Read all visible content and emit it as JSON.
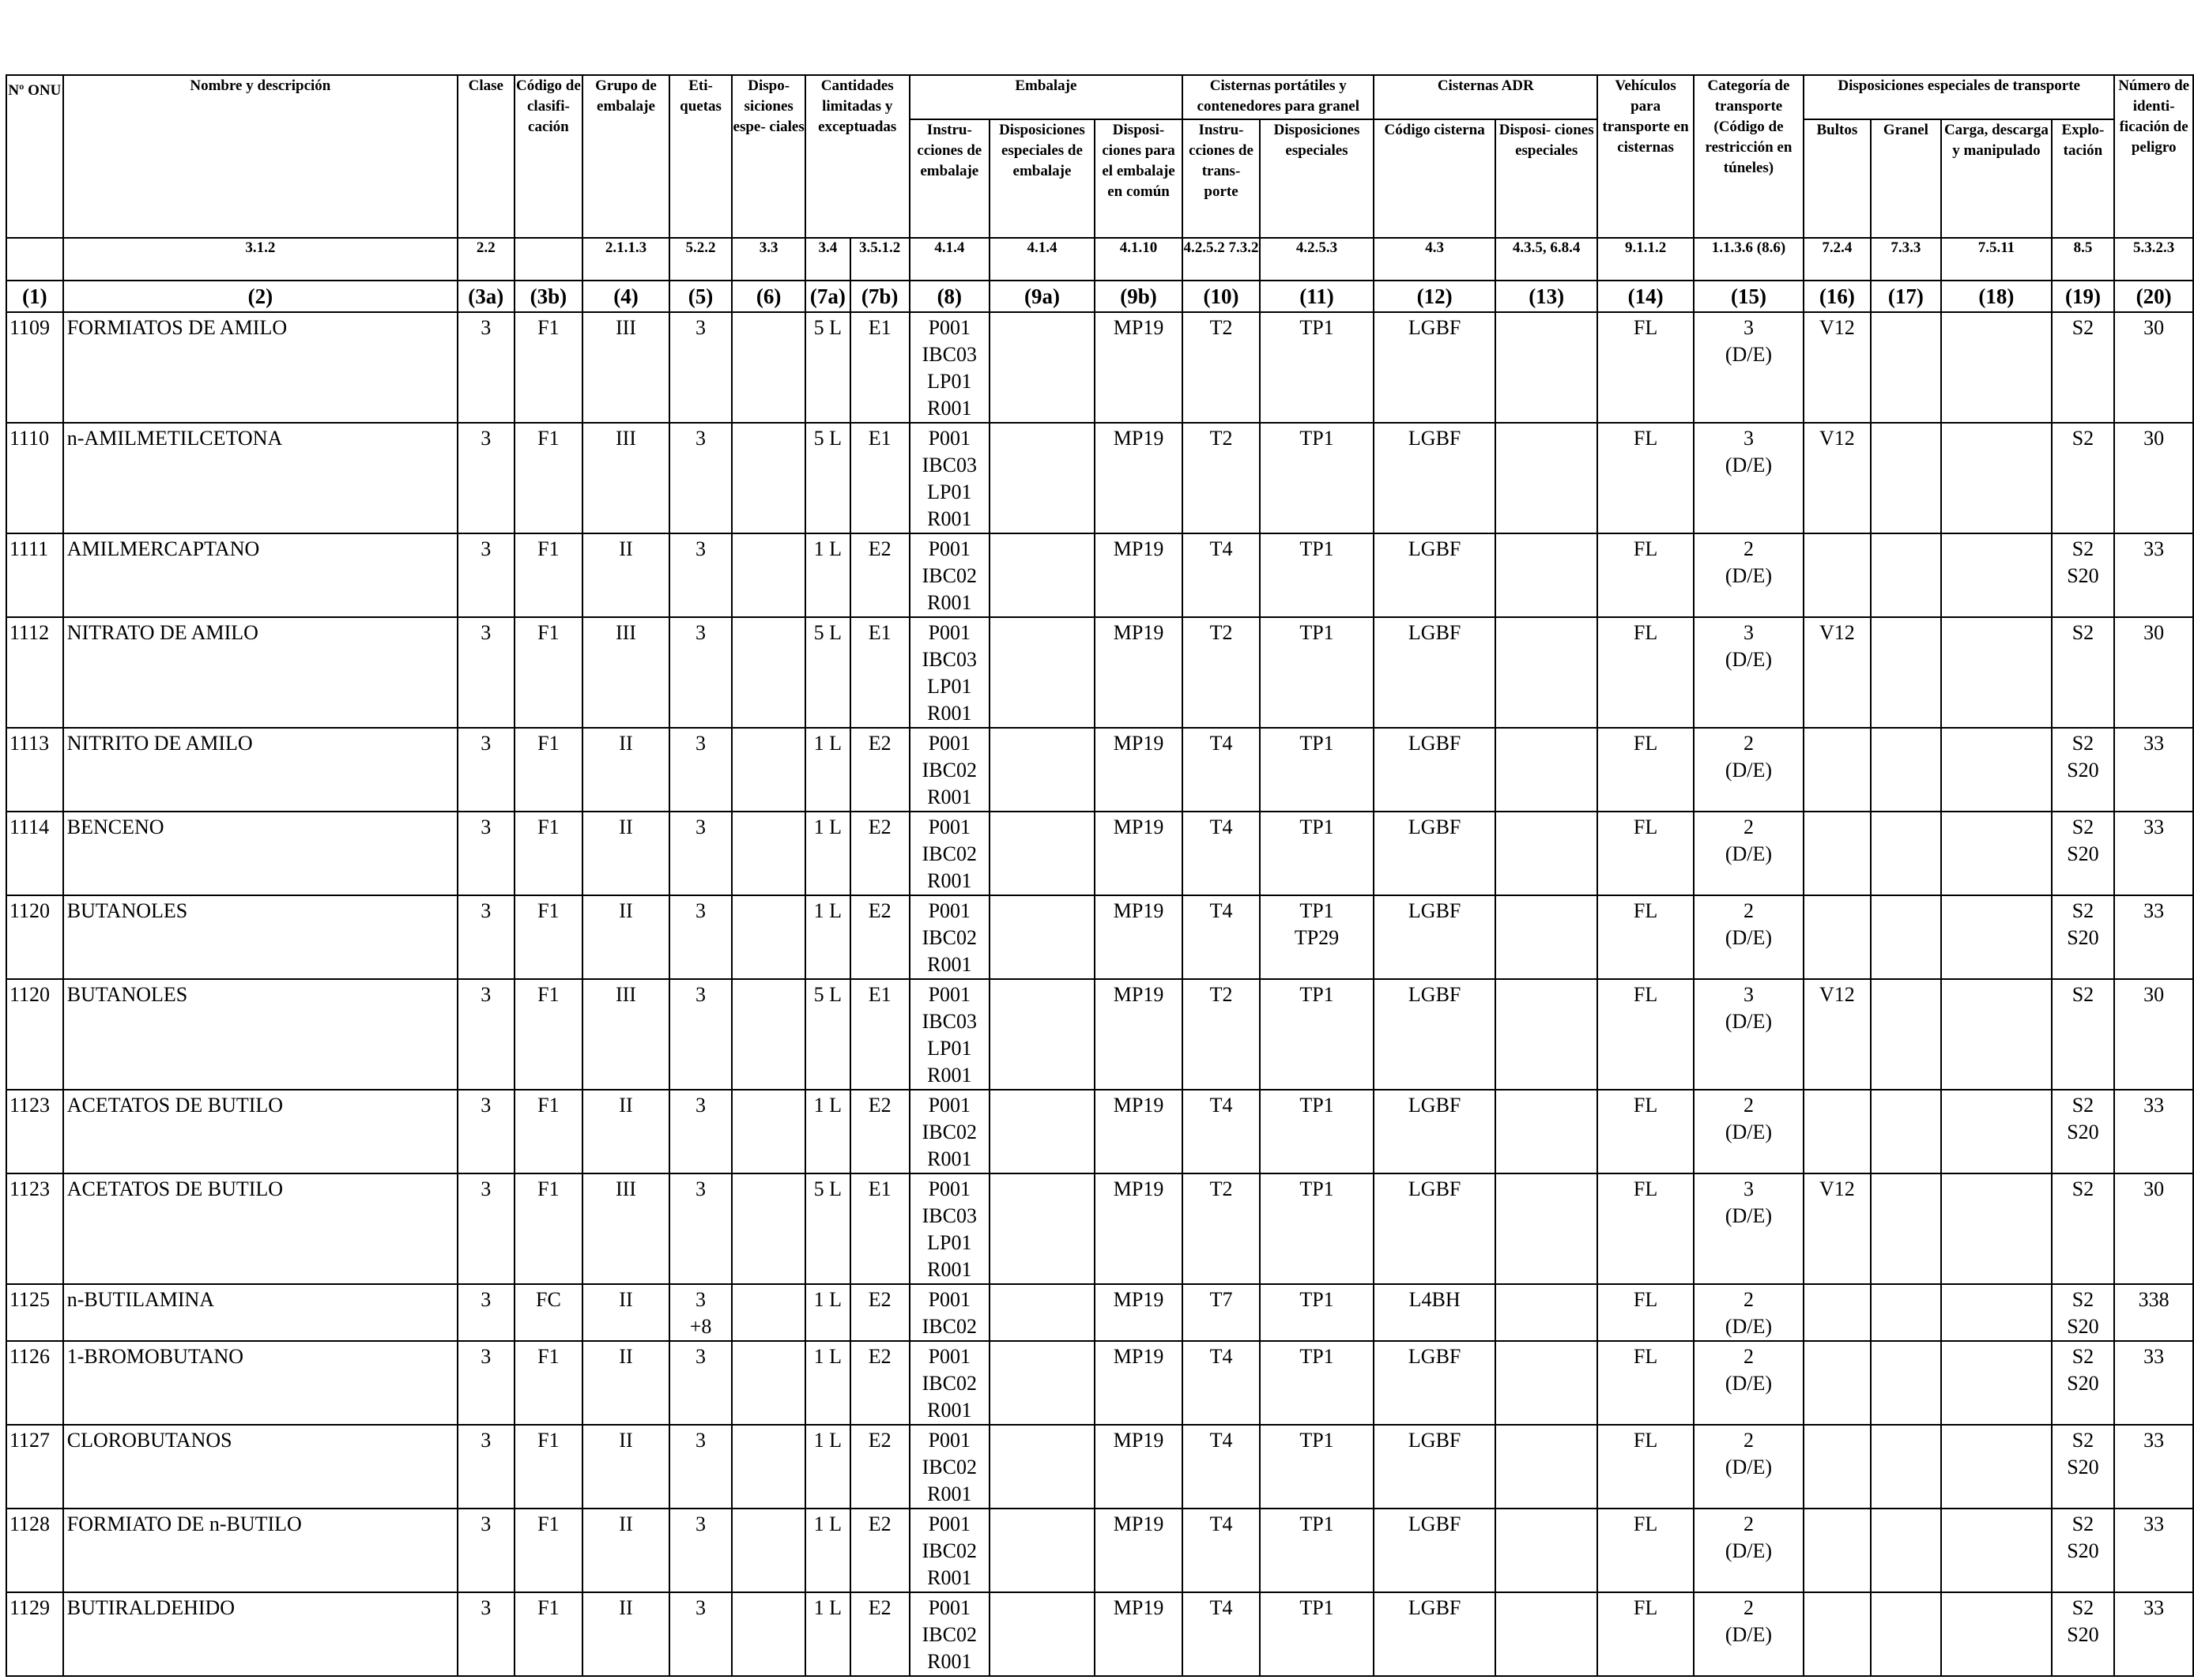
{
  "headers": {
    "onu": "Nº ONU",
    "nombre": "Nombre y descripción",
    "clase": "Clase",
    "codigo": "Código de clasifi- cación",
    "grupo": "Grupo de embalaje",
    "etiquetas": "Eti- quetas",
    "disposiciones": "Dispo- siciones espe- ciales",
    "cantidades": "Cantidades limitadas y exceptuadas",
    "embalaje": "Embalaje",
    "emb_instr": "Instru- cciones de embalaje",
    "emb_disp": "Disposiciones especiales de embalaje",
    "emb_comun": "Disposi- ciones para el embalaje en común",
    "cisternas_port": "Cisternas portátiles y contenedores para granel",
    "cp_instr": "Instru- cciones de trans- porte",
    "cp_disp": "Disposiciones especiales",
    "cisternas_adr": "Cisternas ADR",
    "cadr_codigo": "Código cisterna",
    "cadr_disp": "Disposi- ciones especiales",
    "vehiculos": "Vehículos para transporte en cisternas",
    "categoria": "Categoría de transporte (Código de restricción en túneles)",
    "disp_transporte": "Disposiciones especiales de transporte",
    "dt_bultos": "Bultos",
    "dt_granel": "Granel",
    "dt_carga": "Carga, descarga y manipulado",
    "dt_explo": "Explo- tación",
    "numero": "Número de identi- ficación de peligro"
  },
  "refs": [
    "",
    "3.1.2",
    "2.2",
    "",
    "2.1.1.3",
    "5.2.2",
    "3.3",
    "3.4",
    "3.5.1.2",
    "4.1.4",
    "4.1.4",
    "4.1.10",
    "4.2.5.2 7.3.2",
    "4.2.5.3",
    "4.3",
    "4.3.5, 6.8.4",
    "9.1.1.2",
    "1.1.3.6 (8.6)",
    "7.2.4",
    "7.3.3",
    "7.5.11",
    "8.5",
    "5.3.2.3"
  ],
  "col_numbers": [
    "(1)",
    "(2)",
    "(3a)",
    "(3b)",
    "(4)",
    "(5)",
    "(6)",
    "(7a)",
    "(7b)",
    "(8)",
    "(9a)",
    "(9b)",
    "(10)",
    "(11)",
    "(12)",
    "(13)",
    "(14)",
    "(15)",
    "(16)",
    "(17)",
    "(18)",
    "(19)",
    "(20)"
  ],
  "rows": [
    {
      "onu": "1109",
      "nombre": "FORMIATOS DE AMILO",
      "clase": "3",
      "codigo": "F1",
      "grupo": "III",
      "etiquetas": "3",
      "disp": "",
      "cant_lim": "5 L",
      "cant_exc": "E1",
      "emb_instr": "P001\nIBC03\nLP01\nR001",
      "emb_disp": "",
      "emb_comun": "MP19",
      "cp_instr": "T2",
      "cp_disp": "TP1",
      "cisterna": "LGBF",
      "cis_disp": "",
      "vehiculos": "FL",
      "categoria": "3\n(D/E)",
      "bultos": "V12",
      "granel": "",
      "carga": "",
      "explotacion": "S2",
      "peligro": "30"
    },
    {
      "onu": "1110",
      "nombre": "n-AMILMETILCETONA",
      "clase": "3",
      "codigo": "F1",
      "grupo": "III",
      "etiquetas": "3",
      "disp": "",
      "cant_lim": "5 L",
      "cant_exc": "E1",
      "emb_instr": "P001\nIBC03\nLP01\nR001",
      "emb_disp": "",
      "emb_comun": "MP19",
      "cp_instr": "T2",
      "cp_disp": "TP1",
      "cisterna": "LGBF",
      "cis_disp": "",
      "vehiculos": "FL",
      "categoria": "3\n(D/E)",
      "bultos": "V12",
      "granel": "",
      "carga": "",
      "explotacion": "S2",
      "peligro": "30"
    },
    {
      "onu": "1111",
      "nombre": "AMILMERCAPTANO",
      "clase": "3",
      "codigo": "F1",
      "grupo": "II",
      "etiquetas": "3",
      "disp": "",
      "cant_lim": "1 L",
      "cant_exc": "E2",
      "emb_instr": "P001\nIBC02\nR001",
      "emb_disp": "",
      "emb_comun": "MP19",
      "cp_instr": "T4",
      "cp_disp": "TP1",
      "cisterna": "LGBF",
      "cis_disp": "",
      "vehiculos": "FL",
      "categoria": "2\n(D/E)",
      "bultos": "",
      "granel": "",
      "carga": "",
      "explotacion": "S2\nS20",
      "peligro": "33"
    },
    {
      "onu": "1112",
      "nombre": "NITRATO DE AMILO",
      "clase": "3",
      "codigo": "F1",
      "grupo": "III",
      "etiquetas": "3",
      "disp": "",
      "cant_lim": "5 L",
      "cant_exc": "E1",
      "emb_instr": "P001\nIBC03\nLP01\nR001",
      "emb_disp": "",
      "emb_comun": "MP19",
      "cp_instr": "T2",
      "cp_disp": "TP1",
      "cisterna": "LGBF",
      "cis_disp": "",
      "vehiculos": "FL",
      "categoria": "3\n(D/E)",
      "bultos": "V12",
      "granel": "",
      "carga": "",
      "explotacion": "S2",
      "peligro": "30"
    },
    {
      "onu": "1113",
      "nombre": "NITRITO DE AMILO",
      "clase": "3",
      "codigo": "F1",
      "grupo": "II",
      "etiquetas": "3",
      "disp": "",
      "cant_lim": "1 L",
      "cant_exc": "E2",
      "emb_instr": "P001\nIBC02\nR001",
      "emb_disp": "",
      "emb_comun": "MP19",
      "cp_instr": "T4",
      "cp_disp": "TP1",
      "cisterna": "LGBF",
      "cis_disp": "",
      "vehiculos": "FL",
      "categoria": "2\n(D/E)",
      "bultos": "",
      "granel": "",
      "carga": "",
      "explotacion": "S2\nS20",
      "peligro": "33"
    },
    {
      "onu": "1114",
      "nombre": "BENCENO",
      "clase": "3",
      "codigo": "F1",
      "grupo": "II",
      "etiquetas": "3",
      "disp": "",
      "cant_lim": "1 L",
      "cant_exc": "E2",
      "emb_instr": "P001\nIBC02\nR001",
      "emb_disp": "",
      "emb_comun": "MP19",
      "cp_instr": "T4",
      "cp_disp": "TP1",
      "cisterna": "LGBF",
      "cis_disp": "",
      "vehiculos": "FL",
      "categoria": "2\n(D/E)",
      "bultos": "",
      "granel": "",
      "carga": "",
      "explotacion": "S2\nS20",
      "peligro": "33"
    },
    {
      "onu": "1120",
      "nombre": "BUTANOLES",
      "clase": "3",
      "codigo": "F1",
      "grupo": "II",
      "etiquetas": "3",
      "disp": "",
      "cant_lim": "1 L",
      "cant_exc": "E2",
      "emb_instr": "P001\nIBC02\nR001",
      "emb_disp": "",
      "emb_comun": "MP19",
      "cp_instr": "T4",
      "cp_disp": "TP1\nTP29",
      "cisterna": "LGBF",
      "cis_disp": "",
      "vehiculos": "FL",
      "categoria": "2\n(D/E)",
      "bultos": "",
      "granel": "",
      "carga": "",
      "explotacion": "S2\nS20",
      "peligro": "33"
    },
    {
      "onu": "1120",
      "nombre": "BUTANOLES",
      "clase": "3",
      "codigo": "F1",
      "grupo": "III",
      "etiquetas": "3",
      "disp": "",
      "cant_lim": "5 L",
      "cant_exc": "E1",
      "emb_instr": "P001\nIBC03\nLP01\nR001",
      "emb_disp": "",
      "emb_comun": "MP19",
      "cp_instr": "T2",
      "cp_disp": "TP1",
      "cisterna": "LGBF",
      "cis_disp": "",
      "vehiculos": "FL",
      "categoria": "3\n(D/E)",
      "bultos": "V12",
      "granel": "",
      "carga": "",
      "explotacion": "S2",
      "peligro": "30"
    },
    {
      "onu": "1123",
      "nombre": "ACETATOS DE BUTILO",
      "clase": "3",
      "codigo": "F1",
      "grupo": "II",
      "etiquetas": "3",
      "disp": "",
      "cant_lim": "1 L",
      "cant_exc": "E2",
      "emb_instr": "P001\nIBC02\nR001",
      "emb_disp": "",
      "emb_comun": "MP19",
      "cp_instr": "T4",
      "cp_disp": "TP1",
      "cisterna": "LGBF",
      "cis_disp": "",
      "vehiculos": "FL",
      "categoria": "2\n(D/E)",
      "bultos": "",
      "granel": "",
      "carga": "",
      "explotacion": "S2\nS20",
      "peligro": "33"
    },
    {
      "onu": "1123",
      "nombre": "ACETATOS DE BUTILO",
      "clase": "3",
      "codigo": "F1",
      "grupo": "III",
      "etiquetas": "3",
      "disp": "",
      "cant_lim": "5 L",
      "cant_exc": "E1",
      "emb_instr": "P001\nIBC03\nLP01\nR001",
      "emb_disp": "",
      "emb_comun": "MP19",
      "cp_instr": "T2",
      "cp_disp": "TP1",
      "cisterna": "LGBF",
      "cis_disp": "",
      "vehiculos": "FL",
      "categoria": "3\n(D/E)",
      "bultos": "V12",
      "granel": "",
      "carga": "",
      "explotacion": "S2",
      "peligro": "30"
    },
    {
      "onu": "1125",
      "nombre": "n-BUTILAMINA",
      "clase": "3",
      "codigo": "FC",
      "grupo": "II",
      "etiquetas": "3\n+8",
      "disp": "",
      "cant_lim": "1 L",
      "cant_exc": "E2",
      "emb_instr": "P001\nIBC02",
      "emb_disp": "",
      "emb_comun": "MP19",
      "cp_instr": "T7",
      "cp_disp": "TP1",
      "cisterna": "L4BH",
      "cis_disp": "",
      "vehiculos": "FL",
      "categoria": "2\n(D/E)",
      "bultos": "",
      "granel": "",
      "carga": "",
      "explotacion": "S2\nS20",
      "peligro": "338"
    },
    {
      "onu": "1126",
      "nombre": "1-BROMOBUTANO",
      "clase": "3",
      "codigo": "F1",
      "grupo": "II",
      "etiquetas": "3",
      "disp": "",
      "cant_lim": "1 L",
      "cant_exc": "E2",
      "emb_instr": "P001\nIBC02\nR001",
      "emb_disp": "",
      "emb_comun": "MP19",
      "cp_instr": "T4",
      "cp_disp": "TP1",
      "cisterna": "LGBF",
      "cis_disp": "",
      "vehiculos": "FL",
      "categoria": "2\n(D/E)",
      "bultos": "",
      "granel": "",
      "carga": "",
      "explotacion": "S2\nS20",
      "peligro": "33"
    },
    {
      "onu": "1127",
      "nombre": "CLOROBUTANOS",
      "clase": "3",
      "codigo": "F1",
      "grupo": "II",
      "etiquetas": "3",
      "disp": "",
      "cant_lim": "1 L",
      "cant_exc": "E2",
      "emb_instr": "P001\nIBC02\nR001",
      "emb_disp": "",
      "emb_comun": "MP19",
      "cp_instr": "T4",
      "cp_disp": "TP1",
      "cisterna": "LGBF",
      "cis_disp": "",
      "vehiculos": "FL",
      "categoria": "2\n(D/E)",
      "bultos": "",
      "granel": "",
      "carga": "",
      "explotacion": "S2\nS20",
      "peligro": "33"
    },
    {
      "onu": "1128",
      "nombre": "FORMIATO DE n-BUTILO",
      "clase": "3",
      "codigo": "F1",
      "grupo": "II",
      "etiquetas": "3",
      "disp": "",
      "cant_lim": "1 L",
      "cant_exc": "E2",
      "emb_instr": "P001\nIBC02\nR001",
      "emb_disp": "",
      "emb_comun": "MP19",
      "cp_instr": "T4",
      "cp_disp": "TP1",
      "cisterna": "LGBF",
      "cis_disp": "",
      "vehiculos": "FL",
      "categoria": "2\n(D/E)",
      "bultos": "",
      "granel": "",
      "carga": "",
      "explotacion": "S2\nS20",
      "peligro": "33"
    },
    {
      "onu": "1129",
      "nombre": "BUTIRALDEHIDO",
      "clase": "3",
      "codigo": "F1",
      "grupo": "II",
      "etiquetas": "3",
      "disp": "",
      "cant_lim": "1 L",
      "cant_exc": "E2",
      "emb_instr": "P001\nIBC02\nR001",
      "emb_disp": "",
      "emb_comun": "MP19",
      "cp_instr": "T4",
      "cp_disp": "TP1",
      "cisterna": "LGBF",
      "cis_disp": "",
      "vehiculos": "FL",
      "categoria": "2\n(D/E)",
      "bultos": "",
      "granel": "",
      "carga": "",
      "explotacion": "S2\nS20",
      "peligro": "33"
    }
  ]
}
